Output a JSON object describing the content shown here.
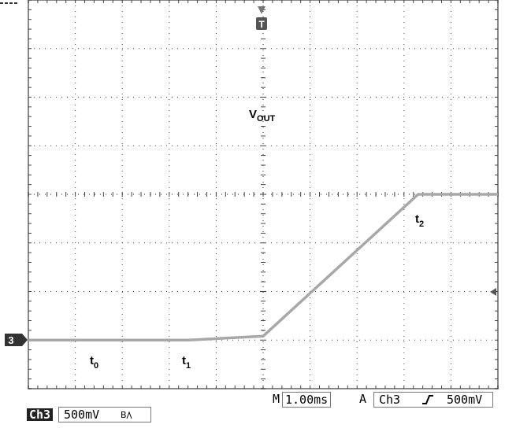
{
  "chart_data": {
    "type": "line",
    "title": "",
    "xlabel": "",
    "ylabel": "",
    "grid": true,
    "x": [
      -5,
      -1.6,
      0,
      3.3,
      5
    ],
    "series": [
      {
        "values": [
          0,
          0,
          0.04,
          1.5,
          1.5
        ]
      }
    ],
    "xlim": [
      -5,
      5
    ],
    "ylim": [
      -0.5,
      3.5
    ],
    "annotations": {
      "vout": "V",
      "vout_sub": "OUT",
      "t0": "t",
      "t0_sub": "0",
      "t1": "t",
      "t1_sub": "1",
      "t2": "t",
      "t2_sub": "2"
    }
  },
  "scope": {
    "trigger_marker": "T",
    "channel_marker": "3",
    "timebase_label": "M",
    "timebase_value": "1.00ms",
    "acq_label": "A",
    "trigger_source": "Ch3",
    "trigger_slope": "rising-edge-icon",
    "trigger_level": "500mV",
    "channel_tag": "Ch3",
    "channel_scale": "500mV",
    "bandwidth_icon": "bandwidth-limit-icon",
    "trace_color": "#a8a8a8",
    "grid_color": "#444444",
    "frame_color": "#888888"
  }
}
